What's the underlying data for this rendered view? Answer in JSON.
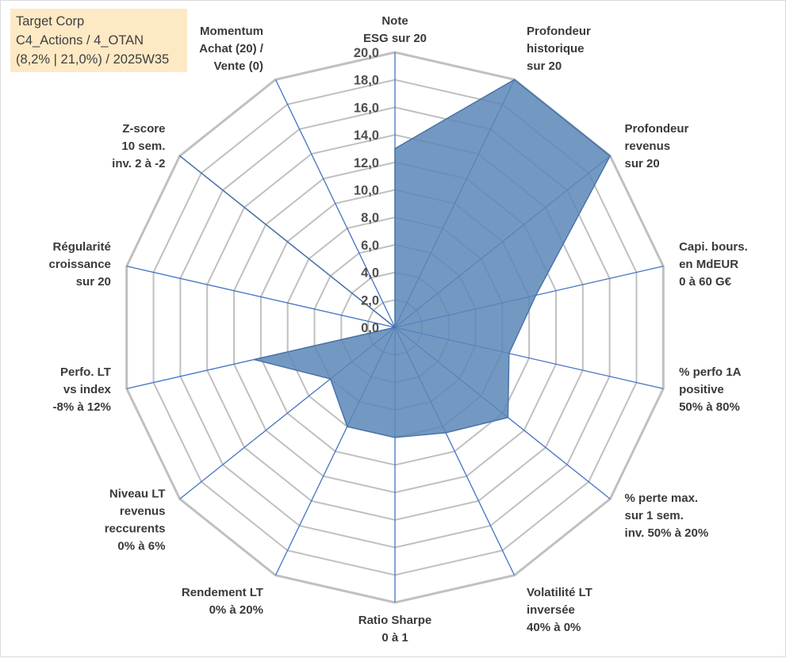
{
  "info_box": {
    "line1": "Target Corp",
    "line2": "C4_Actions / 4_OTAN",
    "line3": "(8,2% | 21,0%) / 2025W35"
  },
  "colors": {
    "grid": "#c0c0c0",
    "spoke": "#4472c4",
    "fill": "#5b87b8",
    "stroke": "#4a74a6",
    "info_bg": "#fde9c4"
  },
  "chart_data": {
    "type": "radar",
    "title": "",
    "range": [
      0,
      20
    ],
    "tick_step": 2,
    "tick_labels": [
      "0,0",
      "2,0",
      "4,0",
      "6,0",
      "8,0",
      "10,0",
      "12,0",
      "14,0",
      "16,0",
      "18,0",
      "20,0"
    ],
    "axes": [
      {
        "label": [
          "Note",
          "ESG sur 20"
        ],
        "value": 13.0
      },
      {
        "label": [
          "Profondeur",
          "historique",
          "sur 20"
        ],
        "value": 20.0
      },
      {
        "label": [
          "Profondeur",
          "revenus",
          "sur 20"
        ],
        "value": 20.0
      },
      {
        "label": [
          "Capi. bours.",
          "en MdEUR",
          "0 à 60 G€"
        ],
        "value": 10.5
      },
      {
        "label": [
          "% perfo 1A",
          "positive",
          "50% à 80%"
        ],
        "value": 8.5
      },
      {
        "label": [
          "% perte max.",
          "sur 1 sem.",
          "inv. 50% à 20%"
        ],
        "value": 10.5
      },
      {
        "label": [
          "Volatilité LT",
          "inversée",
          "40% à 0%"
        ],
        "value": 8.5
      },
      {
        "label": [
          "Ratio Sharpe",
          "0 à 1"
        ],
        "value": 8.0
      },
      {
        "label": [
          "Rendement LT",
          "0% à 20%"
        ],
        "value": 8.0
      },
      {
        "label": [
          "Niveau LT",
          "revenus",
          "reccurents",
          "0% à 6%"
        ],
        "value": 6.0
      },
      {
        "label": [
          "Perfo. LT",
          "vs index",
          "-8% à 12%"
        ],
        "value": 10.5
      },
      {
        "label": [
          "Régularité",
          "croissance",
          "sur 20"
        ],
        "value": 0.0
      },
      {
        "label": [
          "Z-score",
          "10 sem.",
          "inv. 2 à -2"
        ],
        "value": 20.0
      },
      {
        "label": [
          "Momentum",
          "Achat (20) /",
          "Vente (0)"
        ],
        "value": 0.0
      }
    ]
  }
}
